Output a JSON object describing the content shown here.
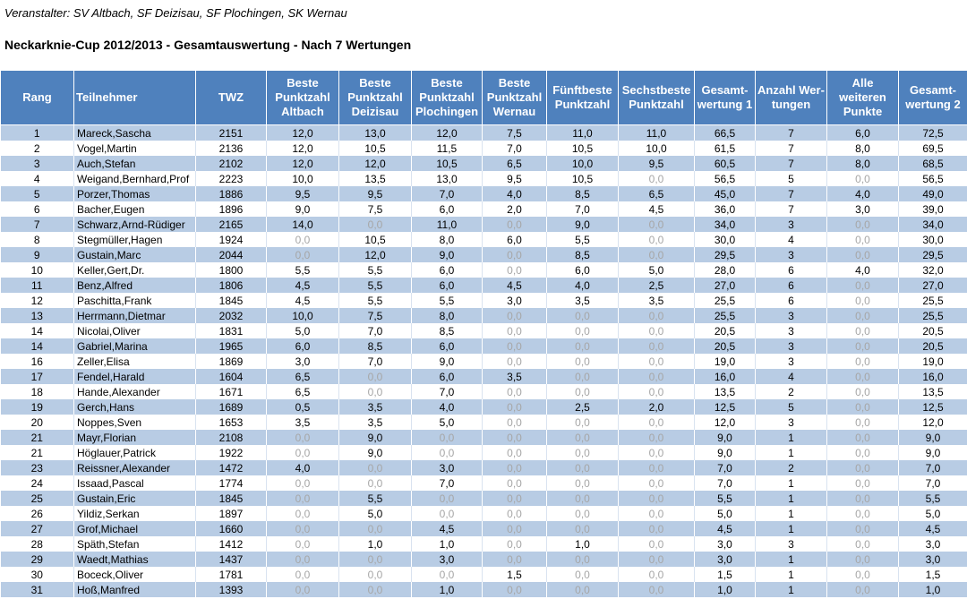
{
  "header": {
    "organizer": "Veranstalter: SV Altbach, SF Deizisau, SF Plochingen, SK Wernau",
    "title": "Neckarknie-Cup 2012/2013 - Gesamtauswertung - Nach 7 Wertungen"
  },
  "table": {
    "columns": [
      "Rang",
      "Teilnehmer",
      "TWZ",
      "Beste Punktzahl Altbach",
      "Beste Punktzahl Deizisau",
      "Beste Punktzahl Plochingen",
      "Beste Punktzahl Wernau",
      "Fünftbeste Punktzahl",
      "Sechstbeste Punktzahl",
      "Gesamt-wertung 1",
      "Anzahl Wer-tungen",
      "Alle weiteren Punkte",
      "Gesamt-wertung 2"
    ],
    "rows": [
      [
        "1",
        "Mareck,Sascha",
        "2151",
        "12,0",
        "13,0",
        "12,0",
        "7,5",
        "11,0",
        "11,0",
        "66,5",
        "7",
        "6,0",
        "72,5"
      ],
      [
        "2",
        "Vogel,Martin",
        "2136",
        "12,0",
        "10,5",
        "11,5",
        "7,0",
        "10,5",
        "10,0",
        "61,5",
        "7",
        "8,0",
        "69,5"
      ],
      [
        "3",
        "Auch,Stefan",
        "2102",
        "12,0",
        "12,0",
        "10,5",
        "6,5",
        "10,0",
        "9,5",
        "60,5",
        "7",
        "8,0",
        "68,5"
      ],
      [
        "4",
        "Weigand,Bernhard,Prof",
        "2223",
        "10,0",
        "13,5",
        "13,0",
        "9,5",
        "10,5",
        "0,0",
        "56,5",
        "5",
        "0,0",
        "56,5"
      ],
      [
        "5",
        "Porzer,Thomas",
        "1886",
        "9,5",
        "9,5",
        "7,0",
        "4,0",
        "8,5",
        "6,5",
        "45,0",
        "7",
        "4,0",
        "49,0"
      ],
      [
        "6",
        "Bacher,Eugen",
        "1896",
        "9,0",
        "7,5",
        "6,0",
        "2,0",
        "7,0",
        "4,5",
        "36,0",
        "7",
        "3,0",
        "39,0"
      ],
      [
        "7",
        "Schwarz,Arnd-Rüdiger",
        "2165",
        "14,0",
        "0,0",
        "11,0",
        "0,0",
        "9,0",
        "0,0",
        "34,0",
        "3",
        "0,0",
        "34,0"
      ],
      [
        "8",
        "Stegmüller,Hagen",
        "1924",
        "0,0",
        "10,5",
        "8,0",
        "6,0",
        "5,5",
        "0,0",
        "30,0",
        "4",
        "0,0",
        "30,0"
      ],
      [
        "9",
        "Gustain,Marc",
        "2044",
        "0,0",
        "12,0",
        "9,0",
        "0,0",
        "8,5",
        "0,0",
        "29,5",
        "3",
        "0,0",
        "29,5"
      ],
      [
        "10",
        "Keller,Gert,Dr.",
        "1800",
        "5,5",
        "5,5",
        "6,0",
        "0,0",
        "6,0",
        "5,0",
        "28,0",
        "6",
        "4,0",
        "32,0"
      ],
      [
        "11",
        "Benz,Alfred",
        "1806",
        "4,5",
        "5,5",
        "6,0",
        "4,5",
        "4,0",
        "2,5",
        "27,0",
        "6",
        "0,0",
        "27,0"
      ],
      [
        "12",
        "Paschitta,Frank",
        "1845",
        "4,5",
        "5,5",
        "5,5",
        "3,0",
        "3,5",
        "3,5",
        "25,5",
        "6",
        "0,0",
        "25,5"
      ],
      [
        "13",
        "Herrmann,Dietmar",
        "2032",
        "10,0",
        "7,5",
        "8,0",
        "0,0",
        "0,0",
        "0,0",
        "25,5",
        "3",
        "0,0",
        "25,5"
      ],
      [
        "14",
        "Nicolai,Oliver",
        "1831",
        "5,0",
        "7,0",
        "8,5",
        "0,0",
        "0,0",
        "0,0",
        "20,5",
        "3",
        "0,0",
        "20,5"
      ],
      [
        "14",
        "Gabriel,Marina",
        "1965",
        "6,0",
        "8,5",
        "6,0",
        "0,0",
        "0,0",
        "0,0",
        "20,5",
        "3",
        "0,0",
        "20,5"
      ],
      [
        "16",
        "Zeller,Elisa",
        "1869",
        "3,0",
        "7,0",
        "9,0",
        "0,0",
        "0,0",
        "0,0",
        "19,0",
        "3",
        "0,0",
        "19,0"
      ],
      [
        "17",
        "Fendel,Harald",
        "1604",
        "6,5",
        "0,0",
        "6,0",
        "3,5",
        "0,0",
        "0,0",
        "16,0",
        "4",
        "0,0",
        "16,0"
      ],
      [
        "18",
        "Hande,Alexander",
        "1671",
        "6,5",
        "0,0",
        "7,0",
        "0,0",
        "0,0",
        "0,0",
        "13,5",
        "2",
        "0,0",
        "13,5"
      ],
      [
        "19",
        "Gerch,Hans",
        "1689",
        "0,5",
        "3,5",
        "4,0",
        "0,0",
        "2,5",
        "2,0",
        "12,5",
        "5",
        "0,0",
        "12,5"
      ],
      [
        "20",
        "Noppes,Sven",
        "1653",
        "3,5",
        "3,5",
        "5,0",
        "0,0",
        "0,0",
        "0,0",
        "12,0",
        "3",
        "0,0",
        "12,0"
      ],
      [
        "21",
        "Mayr,Florian",
        "2108",
        "0,0",
        "9,0",
        "0,0",
        "0,0",
        "0,0",
        "0,0",
        "9,0",
        "1",
        "0,0",
        "9,0"
      ],
      [
        "21",
        "Höglauer,Patrick",
        "1922",
        "0,0",
        "9,0",
        "0,0",
        "0,0",
        "0,0",
        "0,0",
        "9,0",
        "1",
        "0,0",
        "9,0"
      ],
      [
        "23",
        "Reissner,Alexander",
        "1472",
        "4,0",
        "0,0",
        "3,0",
        "0,0",
        "0,0",
        "0,0",
        "7,0",
        "2",
        "0,0",
        "7,0"
      ],
      [
        "24",
        "Issaad,Pascal",
        "1774",
        "0,0",
        "0,0",
        "7,0",
        "0,0",
        "0,0",
        "0,0",
        "7,0",
        "1",
        "0,0",
        "7,0"
      ],
      [
        "25",
        "Gustain,Eric",
        "1845",
        "0,0",
        "5,5",
        "0,0",
        "0,0",
        "0,0",
        "0,0",
        "5,5",
        "1",
        "0,0",
        "5,5"
      ],
      [
        "26",
        "Yildiz,Serkan",
        "1897",
        "0,0",
        "5,0",
        "0,0",
        "0,0",
        "0,0",
        "0,0",
        "5,0",
        "1",
        "0,0",
        "5,0"
      ],
      [
        "27",
        "Grof,Michael",
        "1660",
        "0,0",
        "0,0",
        "4,5",
        "0,0",
        "0,0",
        "0,0",
        "4,5",
        "1",
        "0,0",
        "4,5"
      ],
      [
        "28",
        "Späth,Stefan",
        "1412",
        "0,0",
        "1,0",
        "1,0",
        "0,0",
        "1,0",
        "0,0",
        "3,0",
        "3",
        "0,0",
        "3,0"
      ],
      [
        "29",
        "Waedt,Mathias",
        "1437",
        "0,0",
        "0,0",
        "3,0",
        "0,0",
        "0,0",
        "0,0",
        "3,0",
        "1",
        "0,0",
        "3,0"
      ],
      [
        "30",
        "Boceck,Oliver",
        "1781",
        "0,0",
        "0,0",
        "0,0",
        "1,5",
        "0,0",
        "0,0",
        "1,5",
        "1",
        "0,0",
        "1,5"
      ],
      [
        "31",
        "Hoß,Manfred",
        "1393",
        "0,0",
        "0,0",
        "1,0",
        "0,0",
        "0,0",
        "0,0",
        "1,0",
        "1",
        "0,0",
        "1,0"
      ]
    ]
  }
}
